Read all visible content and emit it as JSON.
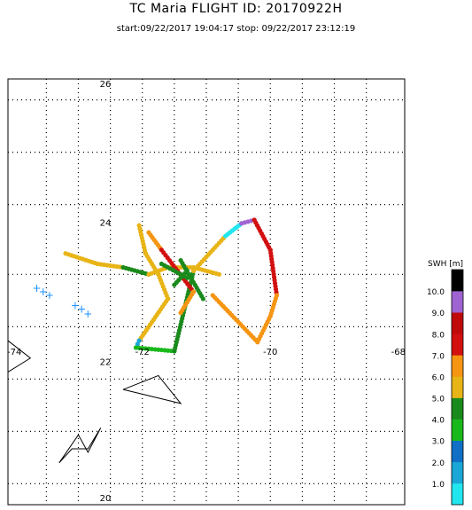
{
  "title": "TC Maria FLIGHT ID: 20170922H",
  "subtitle": "start:09/22/2017 19:04:17 stop: 09/22/2017 23:12:19",
  "chart_data": {
    "type": "scatter",
    "xlim": [
      -74,
      -68
    ],
    "ylim": [
      20,
      26
    ],
    "x_ticks": [
      "-74",
      "-72",
      "-70",
      "-68"
    ],
    "y_ticks": [
      "26",
      "24",
      "22",
      "20"
    ],
    "grid": true,
    "colorbar": {
      "label": "SWH [m]",
      "tick_labels": [
        "10.0",
        "9.0",
        "8.0",
        "7.0",
        "6.0",
        "5.0",
        "4.0",
        "3.0",
        "2.0",
        "1.0"
      ],
      "bins": [
        {
          "from": 0,
          "to": 1,
          "color": "#22e6ee"
        },
        {
          "from": 1,
          "to": 2,
          "color": "#1aa6d6"
        },
        {
          "from": 2,
          "to": 3,
          "color": "#1170c6"
        },
        {
          "from": 3,
          "to": 4,
          "color": "#19b91c"
        },
        {
          "from": 4,
          "to": 5,
          "color": "#1a8a1c"
        },
        {
          "from": 5,
          "to": 6,
          "color": "#e8b416"
        },
        {
          "from": 6,
          "to": 7,
          "color": "#f59512"
        },
        {
          "from": 7,
          "to": 8,
          "color": "#d21010"
        },
        {
          "from": 8,
          "to": 9,
          "color": "#c00a0a"
        },
        {
          "from": 9,
          "to": 10,
          "color": "#a064d2"
        },
        {
          "from": 10,
          "to": 11,
          "color": "#000000"
        }
      ]
    },
    "track_segments": [
      {
        "from": [
          -73.2,
          23.55
        ],
        "to": [
          -72.7,
          23.4
        ],
        "swh": 5.8
      },
      {
        "from": [
          -72.7,
          23.4
        ],
        "to": [
          -72.3,
          23.35
        ],
        "swh": 5.6
      },
      {
        "from": [
          -72.3,
          23.35
        ],
        "to": [
          -71.9,
          23.25
        ],
        "swh": 4.5
      },
      {
        "from": [
          -71.9,
          23.25
        ],
        "to": [
          -71.6,
          23.35
        ],
        "swh": 5.6
      },
      {
        "from": [
          -71.6,
          23.35
        ],
        "to": [
          -71.2,
          23.35
        ],
        "swh": 5.8
      },
      {
        "from": [
          -71.2,
          23.35
        ],
        "to": [
          -70.8,
          23.25
        ],
        "swh": 5.5
      },
      {
        "from": [
          -72.05,
          23.95
        ],
        "to": [
          -71.95,
          23.55
        ],
        "swh": 5.8
      },
      {
        "from": [
          -71.95,
          23.55
        ],
        "to": [
          -71.75,
          23.25
        ],
        "swh": 5.6
      },
      {
        "from": [
          -71.75,
          23.25
        ],
        "to": [
          -71.6,
          22.9
        ],
        "swh": 5.8
      },
      {
        "from": [
          -71.6,
          22.9
        ],
        "to": [
          -72.05,
          22.3
        ],
        "swh": 5.5
      },
      {
        "from": [
          -72.05,
          22.3
        ],
        "to": [
          -72.1,
          22.2
        ],
        "swh": 1.0
      },
      {
        "from": [
          -72.1,
          22.2
        ],
        "to": [
          -71.5,
          22.15
        ],
        "swh": 3.5
      },
      {
        "from": [
          -71.5,
          22.15
        ],
        "to": [
          -71.2,
          23.3
        ],
        "swh": 4.5
      },
      {
        "from": [
          -71.9,
          23.85
        ],
        "to": [
          -71.7,
          23.6
        ],
        "swh": 6.2
      },
      {
        "from": [
          -71.7,
          23.6
        ],
        "to": [
          -71.45,
          23.3
        ],
        "swh": 7.6
      },
      {
        "from": [
          -71.45,
          23.3
        ],
        "to": [
          -71.2,
          23.0
        ],
        "swh": 7.8
      },
      {
        "from": [
          -71.2,
          23.0
        ],
        "to": [
          -71.4,
          22.7
        ],
        "swh": 6.0
      },
      {
        "from": [
          -71.5,
          23.1
        ],
        "to": [
          -71.3,
          23.3
        ],
        "swh": 4.4
      },
      {
        "from": [
          -71.2,
          23.3
        ],
        "to": [
          -70.7,
          23.8
        ],
        "swh": 5.5
      },
      {
        "from": [
          -70.7,
          23.8
        ],
        "to": [
          -70.45,
          23.98
        ],
        "swh": 0.8
      },
      {
        "from": [
          -70.45,
          23.98
        ],
        "to": [
          -70.25,
          24.03
        ],
        "swh": 9.4
      },
      {
        "from": [
          -70.25,
          24.03
        ],
        "to": [
          -70.0,
          23.6
        ],
        "swh": 7.8
      },
      {
        "from": [
          -70.0,
          23.6
        ],
        "to": [
          -69.9,
          22.95
        ],
        "swh": 7.7
      },
      {
        "from": [
          -69.9,
          22.95
        ],
        "to": [
          -70.0,
          22.65
        ],
        "swh": 6.3
      },
      {
        "from": [
          -70.0,
          22.65
        ],
        "to": [
          -70.2,
          22.28
        ],
        "swh": 6.0
      },
      {
        "from": [
          -70.9,
          22.95
        ],
        "to": [
          -70.2,
          22.28
        ],
        "swh": 6.1
      },
      {
        "from": [
          -71.7,
          23.4
        ],
        "to": [
          -71.3,
          23.2
        ],
        "swh": 4.6
      },
      {
        "from": [
          -71.4,
          23.45
        ],
        "to": [
          -71.05,
          22.9
        ],
        "swh": 4.7
      }
    ],
    "markers": [
      {
        "x": -73.65,
        "y": 23.05,
        "color": "#1e90ff",
        "symbol": "+"
      },
      {
        "x": -73.55,
        "y": 23.0,
        "color": "#1e90ff",
        "symbol": "+"
      },
      {
        "x": -73.45,
        "y": 22.95,
        "color": "#1e90ff",
        "symbol": "+"
      },
      {
        "x": -73.05,
        "y": 22.8,
        "color": "#1e90ff",
        "symbol": "+"
      },
      {
        "x": -72.95,
        "y": 22.75,
        "color": "#1e90ff",
        "symbol": "+"
      },
      {
        "x": -72.85,
        "y": 22.68,
        "color": "#1e90ff",
        "symbol": "+"
      }
    ],
    "outlines": [
      [
        [
          -72.3,
          21.6
        ],
        [
          -71.75,
          21.8
        ],
        [
          -71.4,
          21.4
        ],
        [
          -72.3,
          21.6
        ]
      ],
      [
        [
          -74.1,
          22.3
        ],
        [
          -73.75,
          22.05
        ],
        [
          -74.1,
          21.85
        ]
      ],
      [
        [
          -73.3,
          20.55
        ],
        [
          -73.0,
          20.95
        ],
        [
          -72.85,
          20.7
        ],
        [
          -72.65,
          21.05
        ],
        [
          -72.85,
          20.75
        ],
        [
          -73.1,
          20.75
        ],
        [
          -73.3,
          20.55
        ]
      ]
    ]
  }
}
